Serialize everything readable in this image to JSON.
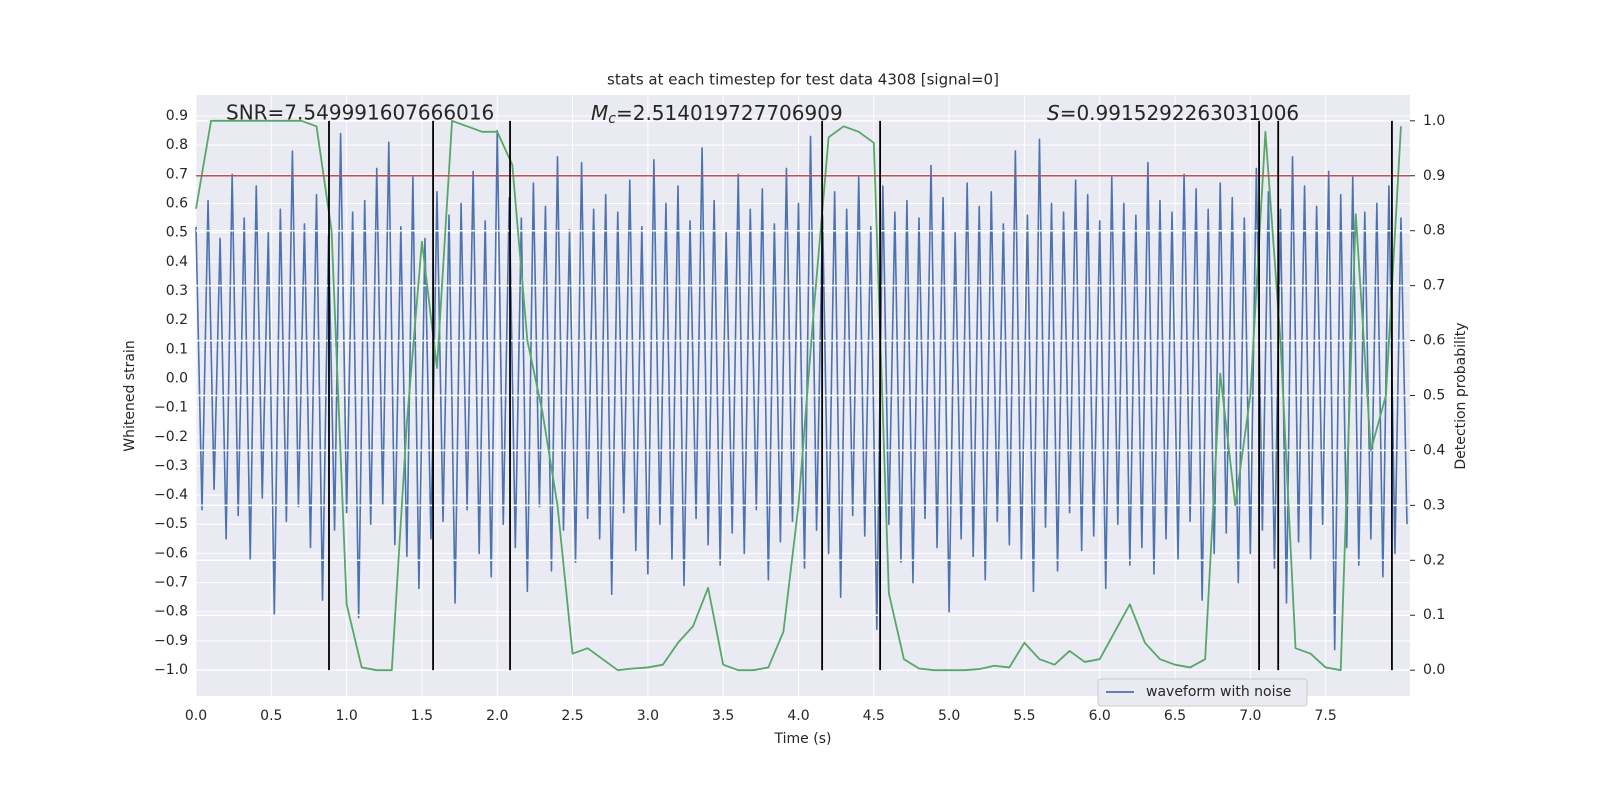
{
  "chart_data": {
    "type": "line",
    "title": "stats at each timestep for test data 4308 [signal=0]",
    "xlabel": "Time (s)",
    "ylabel": "Whitened strain",
    "y2label": "Detection probability",
    "annotations": [
      {
        "text": "SNR=7.549991607666016"
      },
      {
        "symbol": "M",
        "subscript": "c",
        "text": "=2.514019727706909"
      },
      {
        "symbol": "S",
        "text": "=0.9915292263031006"
      }
    ],
    "xlim": [
      0,
      8.06
    ],
    "ylim": [
      -1.089,
      0.972
    ],
    "y2lim": [
      -0.047,
      1.047
    ],
    "xticks": [
      {
        "value": 0,
        "label": "0.0"
      },
      0.5,
      {
        "value": 1,
        "label": "1.0"
      },
      1.5,
      {
        "value": 2,
        "label": "2.0"
      },
      2.5,
      {
        "value": 3,
        "label": "3.0"
      },
      3.5,
      {
        "value": 4,
        "label": "4.0"
      },
      4.5,
      {
        "value": 5,
        "label": "5.0"
      },
      5.5,
      {
        "value": 6,
        "label": "6.0"
      },
      6.5,
      {
        "value": 7,
        "label": "7.0"
      },
      7.5
    ],
    "yticks": [
      0.9,
      0.8,
      0.7,
      0.6,
      0.5,
      0.4,
      0.3,
      0.2,
      0.1,
      {
        "value": 0,
        "label": "0.0"
      },
      {
        "value": -0.1,
        "label": "−0.1"
      },
      {
        "value": -0.2,
        "label": "−0.2"
      },
      {
        "value": -0.3,
        "label": "−0.3"
      },
      {
        "value": -0.4,
        "label": "−0.4"
      },
      {
        "value": -0.5,
        "label": "−0.5"
      },
      {
        "value": -0.6,
        "label": "−0.6"
      },
      {
        "value": -0.7,
        "label": "−0.7"
      },
      {
        "value": -0.8,
        "label": "−0.8"
      },
      {
        "value": -0.9,
        "label": "−0.9"
      },
      {
        "value": -1,
        "label": "−1.0"
      }
    ],
    "y2ticks": [
      {
        "value": 0,
        "label": "0.0"
      },
      0.1,
      0.2,
      0.3,
      0.4,
      0.5,
      0.6,
      0.7,
      0.8,
      0.9,
      {
        "value": 1,
        "label": "1.0"
      }
    ],
    "grid": true,
    "legend": "lower right",
    "series": [
      {
        "name": "waveform with noise",
        "color": "#4c72b0",
        "x": [
          0,
          0.04,
          0.08,
          0.12,
          0.16,
          0.2,
          0.24,
          0.28,
          0.32,
          0.36,
          0.4,
          0.44,
          0.48,
          0.52,
          0.56,
          0.6,
          0.64,
          0.68,
          0.72,
          0.76,
          0.8,
          0.84,
          0.88,
          0.92,
          0.96,
          1,
          1.04,
          1.08,
          1.12,
          1.16,
          1.2,
          1.24,
          1.28,
          1.32,
          1.36,
          1.4,
          1.44,
          1.48,
          1.52,
          1.56,
          1.6,
          1.64,
          1.68,
          1.72,
          1.76,
          1.8,
          1.84,
          1.88,
          1.92,
          1.96,
          2,
          2.04,
          2.08,
          2.12,
          2.16,
          2.2,
          2.24,
          2.28,
          2.32,
          2.36,
          2.4,
          2.44,
          2.48,
          2.52,
          2.56,
          2.6,
          2.64,
          2.68,
          2.72,
          2.76,
          2.8,
          2.84,
          2.88,
          2.92,
          2.96,
          3,
          3.04,
          3.08,
          3.12,
          3.16,
          3.2,
          3.24,
          3.28,
          3.32,
          3.36,
          3.4,
          3.44,
          3.48,
          3.52,
          3.56,
          3.6,
          3.64,
          3.68,
          3.72,
          3.76,
          3.8,
          3.84,
          3.88,
          3.92,
          3.96,
          4,
          4.04,
          4.08,
          4.12,
          4.16,
          4.2,
          4.24,
          4.28,
          4.32,
          4.36,
          4.4,
          4.44,
          4.48,
          4.52,
          4.56,
          4.6,
          4.64,
          4.68,
          4.72,
          4.76,
          4.8,
          4.84,
          4.88,
          4.92,
          4.96,
          5,
          5.04,
          5.08,
          5.12,
          5.16,
          5.2,
          5.24,
          5.28,
          5.32,
          5.36,
          5.4,
          5.44,
          5.48,
          5.52,
          5.56,
          5.6,
          5.64,
          5.68,
          5.72,
          5.76,
          5.8,
          5.84,
          5.88,
          5.92,
          5.96,
          6,
          6.04,
          6.08,
          6.12,
          6.16,
          6.2,
          6.24,
          6.28,
          6.32,
          6.36,
          6.4,
          6.44,
          6.48,
          6.52,
          6.56,
          6.6,
          6.64,
          6.68,
          6.72,
          6.76,
          6.8,
          6.84,
          6.88,
          6.92,
          6.96,
          7,
          7.04,
          7.08,
          7.12,
          7.16,
          7.2,
          7.24,
          7.28,
          7.32,
          7.36,
          7.4,
          7.44,
          7.48,
          7.52,
          7.56,
          7.6,
          7.64,
          7.68,
          7.72,
          7.76,
          7.8,
          7.84,
          7.88,
          7.92,
          7.96,
          8,
          8.04
        ],
        "values": [
          0.52,
          -0.45,
          0.61,
          -0.38,
          0.48,
          -0.55,
          0.7,
          -0.47,
          0.55,
          -0.62,
          0.66,
          -0.41,
          0.5,
          -0.81,
          0.58,
          -0.49,
          0.78,
          -0.44,
          0.53,
          -0.58,
          0.63,
          -0.76,
          0.49,
          -0.52,
          0.84,
          -0.46,
          0.57,
          -0.82,
          0.61,
          -0.5,
          0.72,
          -0.43,
          0.81,
          -0.57,
          0.52,
          -0.61,
          0.69,
          -0.72,
          0.48,
          -0.55,
          0.64,
          -0.49,
          0.56,
          -0.77,
          0.6,
          -0.45,
          0.71,
          -0.6,
          0.54,
          -0.68,
          0.85,
          -0.5,
          0.62,
          -0.58,
          0.55,
          -0.73,
          0.67,
          -0.44,
          0.59,
          -0.66,
          0.76,
          -0.52,
          0.51,
          -0.63,
          0.74,
          -0.48,
          0.58,
          -0.55,
          0.63,
          -0.74,
          0.57,
          -0.46,
          0.68,
          -0.59,
          0.52,
          -0.67,
          0.75,
          -0.5,
          0.6,
          -0.62,
          0.66,
          -0.71,
          0.54,
          -0.48,
          0.79,
          -0.57,
          0.61,
          -0.64,
          0.5,
          -0.53,
          0.7,
          -0.6,
          0.58,
          -0.45,
          0.65,
          -0.69,
          0.53,
          -0.56,
          0.72,
          -0.49,
          0.6,
          -0.65,
          0.83,
          -0.52,
          0.56,
          -0.6,
          0.64,
          -0.75,
          0.58,
          -0.47,
          0.69,
          -0.54,
          0.52,
          -0.86,
          0.66,
          -0.5,
          0.57,
          -0.63,
          0.61,
          -0.7,
          0.55,
          -0.48,
          0.73,
          -0.58,
          0.62,
          -0.8,
          0.5,
          -0.55,
          0.67,
          -0.61,
          0.59,
          -0.69,
          0.64,
          -0.49,
          0.53,
          -0.57,
          0.78,
          -0.62,
          0.56,
          -0.73,
          0.82,
          -0.51,
          0.6,
          -0.66,
          0.57,
          -0.46,
          0.68,
          -0.59,
          0.63,
          -0.54,
          0.54,
          -0.72,
          0.69,
          -0.5,
          0.6,
          -0.64,
          0.56,
          -0.58,
          0.74,
          -0.67,
          0.61,
          -0.55,
          0.57,
          -0.62,
          0.7,
          -0.49,
          0.65,
          -0.76,
          0.58,
          -0.6,
          0.67,
          -0.53,
          0.62,
          -0.7,
          0.55,
          -0.6,
          0.72,
          -0.52,
          0.64,
          -0.65,
          0.58,
          -0.77,
          0.76,
          -0.56,
          0.66,
          -0.62,
          0.59,
          -0.5,
          0.71,
          -0.93,
          0.63,
          -0.58,
          0.69,
          -0.64,
          0.57,
          -0.55,
          0.6,
          -0.68,
          0.66,
          -0.6,
          0.55,
          -0.5
        ]
      },
      {
        "color": "#55a868",
        "axis": "y2",
        "x": [
          0,
          0.1,
          0.2,
          0.3,
          0.4,
          0.5,
          0.6,
          0.7,
          0.8,
          0.9,
          1,
          1.1,
          1.2,
          1.3,
          1.4,
          1.5,
          1.6,
          1.7,
          1.8,
          1.9,
          2,
          2.1,
          2.2,
          2.3,
          2.4,
          2.5,
          2.6,
          2.7,
          2.8,
          2.9,
          3,
          3.1,
          3.2,
          3.3,
          3.4,
          3.5,
          3.6,
          3.7,
          3.8,
          3.9,
          4,
          4.1,
          4.2,
          4.3,
          4.4,
          4.5,
          4.6,
          4.7,
          4.8,
          4.9,
          5,
          5.1,
          5.2,
          5.3,
          5.4,
          5.5,
          5.6,
          5.7,
          5.8,
          5.9,
          6,
          6.1,
          6.2,
          6.3,
          6.4,
          6.5,
          6.6,
          6.7,
          6.8,
          6.9,
          7,
          7.1,
          7.2,
          7.3,
          7.4,
          7.5,
          7.6,
          7.7,
          7.8,
          7.9,
          8
        ],
        "values": [
          0.84,
          1,
          1,
          1,
          1,
          1,
          1,
          1,
          0.99,
          0.8,
          0.12,
          0.005,
          0,
          0,
          0.45,
          0.78,
          0.55,
          1,
          0.99,
          0.98,
          0.98,
          0.92,
          0.6,
          0.47,
          0.3,
          0.03,
          0.04,
          0.02,
          0,
          0.003,
          0.005,
          0.01,
          0.05,
          0.08,
          0.15,
          0.01,
          0,
          0,
          0.005,
          0.07,
          0.3,
          0.65,
          0.97,
          0.99,
          0.98,
          0.96,
          0.14,
          0.02,
          0.003,
          0,
          0,
          0,
          0.002,
          0.008,
          0.005,
          0.05,
          0.02,
          0.01,
          0.035,
          0.015,
          0.02,
          0.07,
          0.12,
          0.05,
          0.02,
          0.01,
          0.005,
          0.02,
          0.54,
          0.3,
          0.5,
          0.98,
          0.6,
          0.04,
          0.03,
          0.005,
          0,
          0.83,
          0.4,
          0.5,
          0.99
        ]
      }
    ],
    "hline": {
      "value": 0.9,
      "axis": "y2",
      "color": "#c44e52"
    },
    "vlines": {
      "x": [
        0.883,
        1.574,
        2.085,
        4.157,
        4.542,
        7.058,
        7.185,
        7.94
      ],
      "ymin": 0,
      "ymax": 1,
      "axis": "y2",
      "color": "#000000"
    }
  }
}
